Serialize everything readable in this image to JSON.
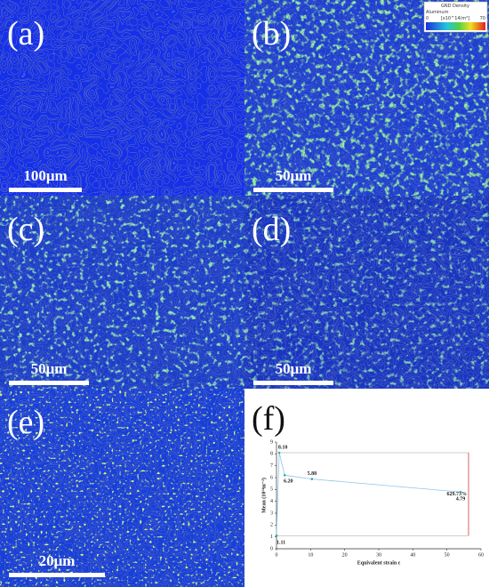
{
  "panels": [
    {
      "label": "(a)",
      "scale_bar": "100μm"
    },
    {
      "label": "(b)",
      "scale_bar": "50μm"
    },
    {
      "label": "(c)",
      "scale_bar": "50μm"
    },
    {
      "label": "(d)",
      "scale_bar": "50μm"
    },
    {
      "label": "(e)",
      "scale_bar": "20μm"
    }
  ],
  "colorbar": {
    "title": "GND Density",
    "material": "Aluminum",
    "min": 0,
    "unit": "[x10^14/m²]",
    "max": 70
  },
  "chart_data": {
    "type": "line",
    "label": "(f)",
    "x": [
      0,
      0.8,
      2.4,
      10.4,
      54
    ],
    "values": [
      1.11,
      8.1,
      6.2,
      5.88,
      4.79
    ],
    "value_labels": [
      "1.11",
      "8.10",
      "6.20",
      "5.88",
      "4.79"
    ],
    "label_colors": [
      "#2e9e5a",
      "#1f4e9c",
      "#3aa7b8",
      "#d23a3a",
      "#d69a1a"
    ],
    "color": "#8ec6e6",
    "marker_color": "#3aa7b8",
    "annotation": "629.73%",
    "annotation_color": "#d23a3a",
    "xlabel": "Equivalent strain ε",
    "ylabel": "Mean (10¹⁴m⁻²)",
    "xlim": [
      0,
      60
    ],
    "xticks": [
      0,
      10,
      20,
      30,
      40,
      50,
      60
    ],
    "ylim": [
      0,
      9
    ],
    "yticks": [
      0,
      1,
      2,
      3,
      4,
      5,
      6,
      7,
      8,
      9
    ]
  }
}
